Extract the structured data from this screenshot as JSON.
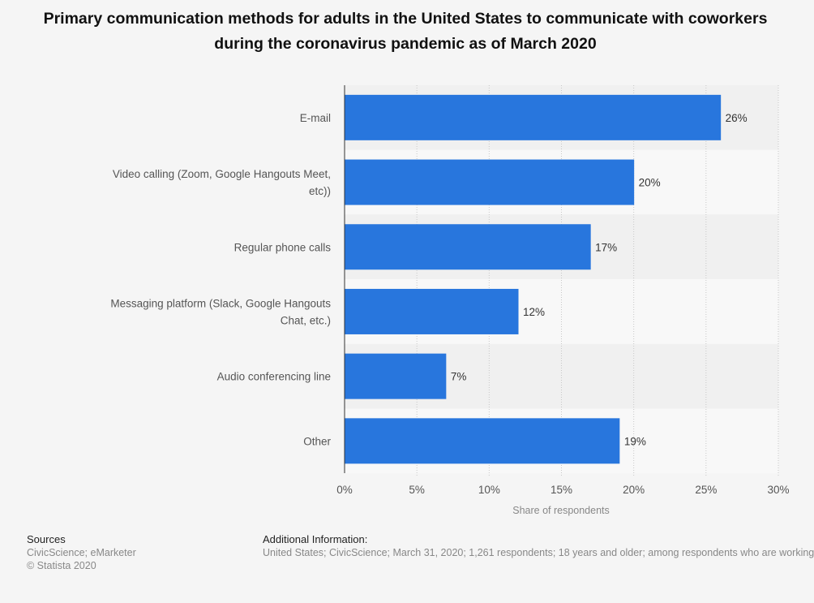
{
  "chart_data": {
    "type": "bar",
    "orientation": "horizontal",
    "title": "Primary communication methods for adults in the United States to communicate with coworkers during the coronavirus pandemic as of March 2020",
    "categories": [
      [
        "E-mail"
      ],
      [
        "Video calling (Zoom, Google Hangouts Meet,",
        "etc))"
      ],
      [
        "Regular phone calls"
      ],
      [
        "Messaging platform (Slack, Google Hangouts",
        "Chat, etc.)"
      ],
      [
        "Audio conferencing line"
      ],
      [
        "Other"
      ]
    ],
    "values": [
      26,
      20,
      17,
      12,
      7,
      19
    ],
    "value_labels": [
      "26%",
      "20%",
      "17%",
      "12%",
      "7%",
      "19%"
    ],
    "xlim": [
      0,
      30
    ],
    "ticks": [
      0,
      5,
      10,
      15,
      20,
      25,
      30
    ],
    "tick_labels": [
      "0%",
      "5%",
      "10%",
      "15%",
      "20%",
      "25%",
      "30%"
    ],
    "xlabel": "Share of respondents",
    "ylabel": "",
    "bar_color": "#2876dd",
    "grid": "vertical dotted"
  },
  "footer": {
    "sources_heading": "Sources",
    "sources_line1": "CivicScience; eMarketer",
    "sources_line2": "© Statista 2020",
    "additional_heading": "Additional Information:",
    "additional_text": "United States; CivicScience; March 31, 2020; 1,261 respondents; 18 years and older; among respondents who are working"
  }
}
